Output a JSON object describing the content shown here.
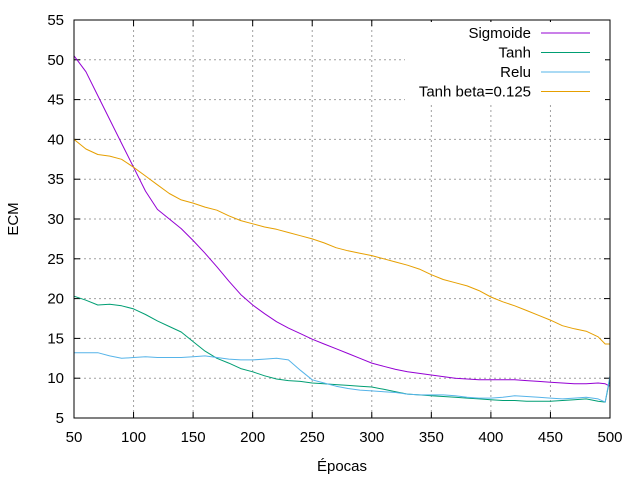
{
  "chart_data": {
    "type": "line",
    "title": "",
    "xlabel": "Épocas",
    "ylabel": "ECM",
    "xlim": [
      50,
      500
    ],
    "ylim": [
      5,
      55
    ],
    "x_ticks": [
      50,
      100,
      150,
      200,
      250,
      300,
      350,
      400,
      450,
      500
    ],
    "y_ticks": [
      5,
      10,
      15,
      20,
      25,
      30,
      35,
      40,
      45,
      50,
      55
    ],
    "grid": true,
    "legend_position": "top-right",
    "series": [
      {
        "name": "Sigmoide",
        "color": "#9400d3",
        "points": [
          [
            50,
            50.5
          ],
          [
            60,
            48.5
          ],
          [
            70,
            45.5
          ],
          [
            80,
            42.5
          ],
          [
            90,
            39.5
          ],
          [
            100,
            36.5
          ],
          [
            110,
            33.5
          ],
          [
            120,
            31.2
          ],
          [
            130,
            30.0
          ],
          [
            140,
            28.8
          ],
          [
            150,
            27.3
          ],
          [
            160,
            25.7
          ],
          [
            170,
            24.0
          ],
          [
            180,
            22.2
          ],
          [
            190,
            20.5
          ],
          [
            200,
            19.2
          ],
          [
            210,
            18.1
          ],
          [
            220,
            17.1
          ],
          [
            230,
            16.3
          ],
          [
            240,
            15.6
          ],
          [
            250,
            14.9
          ],
          [
            260,
            14.3
          ],
          [
            270,
            13.7
          ],
          [
            280,
            13.1
          ],
          [
            290,
            12.5
          ],
          [
            300,
            11.9
          ],
          [
            310,
            11.5
          ],
          [
            320,
            11.1
          ],
          [
            330,
            10.8
          ],
          [
            340,
            10.6
          ],
          [
            350,
            10.4
          ],
          [
            360,
            10.2
          ],
          [
            370,
            10.0
          ],
          [
            380,
            9.9
          ],
          [
            390,
            9.8
          ],
          [
            400,
            9.8
          ],
          [
            410,
            9.8
          ],
          [
            420,
            9.8
          ],
          [
            430,
            9.7
          ],
          [
            440,
            9.6
          ],
          [
            450,
            9.5
          ],
          [
            460,
            9.4
          ],
          [
            470,
            9.3
          ],
          [
            480,
            9.3
          ],
          [
            490,
            9.4
          ],
          [
            496,
            9.3
          ],
          [
            500,
            9.0
          ]
        ]
      },
      {
        "name": "Tanh",
        "color": "#009e73",
        "points": [
          [
            50,
            20.3
          ],
          [
            60,
            19.8
          ],
          [
            70,
            19.2
          ],
          [
            80,
            19.3
          ],
          [
            90,
            19.1
          ],
          [
            100,
            18.7
          ],
          [
            110,
            18.0
          ],
          [
            120,
            17.2
          ],
          [
            130,
            16.5
          ],
          [
            140,
            15.8
          ],
          [
            150,
            14.6
          ],
          [
            160,
            13.4
          ],
          [
            170,
            12.5
          ],
          [
            180,
            11.9
          ],
          [
            190,
            11.2
          ],
          [
            200,
            10.8
          ],
          [
            210,
            10.3
          ],
          [
            220,
            9.9
          ],
          [
            230,
            9.7
          ],
          [
            240,
            9.6
          ],
          [
            250,
            9.4
          ],
          [
            260,
            9.3
          ],
          [
            270,
            9.2
          ],
          [
            280,
            9.1
          ],
          [
            290,
            9.0
          ],
          [
            300,
            8.9
          ],
          [
            310,
            8.6
          ],
          [
            320,
            8.3
          ],
          [
            330,
            8.0
          ],
          [
            340,
            7.9
          ],
          [
            350,
            7.8
          ],
          [
            360,
            7.7
          ],
          [
            370,
            7.6
          ],
          [
            380,
            7.5
          ],
          [
            390,
            7.4
          ],
          [
            400,
            7.3
          ],
          [
            410,
            7.2
          ],
          [
            420,
            7.2
          ],
          [
            430,
            7.1
          ],
          [
            440,
            7.1
          ],
          [
            450,
            7.1
          ],
          [
            460,
            7.2
          ],
          [
            470,
            7.3
          ],
          [
            480,
            7.4
          ],
          [
            490,
            7.1
          ],
          [
            496,
            7.0
          ],
          [
            500,
            10.0
          ]
        ]
      },
      {
        "name": "Relu",
        "color": "#56b4e9",
        "points": [
          [
            50,
            13.2
          ],
          [
            60,
            13.2
          ],
          [
            70,
            13.2
          ],
          [
            80,
            12.8
          ],
          [
            90,
            12.5
          ],
          [
            100,
            12.6
          ],
          [
            110,
            12.7
          ],
          [
            120,
            12.6
          ],
          [
            130,
            12.6
          ],
          [
            140,
            12.6
          ],
          [
            150,
            12.7
          ],
          [
            160,
            12.8
          ],
          [
            170,
            12.6
          ],
          [
            180,
            12.4
          ],
          [
            190,
            12.3
          ],
          [
            200,
            12.3
          ],
          [
            210,
            12.4
          ],
          [
            220,
            12.5
          ],
          [
            230,
            12.3
          ],
          [
            240,
            11.0
          ],
          [
            250,
            9.8
          ],
          [
            260,
            9.4
          ],
          [
            270,
            9.0
          ],
          [
            280,
            8.7
          ],
          [
            290,
            8.5
          ],
          [
            300,
            8.4
          ],
          [
            310,
            8.3
          ],
          [
            320,
            8.2
          ],
          [
            330,
            8.0
          ],
          [
            340,
            7.9
          ],
          [
            350,
            7.9
          ],
          [
            360,
            7.9
          ],
          [
            370,
            7.8
          ],
          [
            380,
            7.6
          ],
          [
            390,
            7.5
          ],
          [
            400,
            7.5
          ],
          [
            410,
            7.6
          ],
          [
            420,
            7.8
          ],
          [
            430,
            7.7
          ],
          [
            440,
            7.6
          ],
          [
            450,
            7.5
          ],
          [
            460,
            7.4
          ],
          [
            470,
            7.5
          ],
          [
            480,
            7.6
          ],
          [
            490,
            7.4
          ],
          [
            496,
            7.0
          ],
          [
            500,
            10.3
          ]
        ]
      },
      {
        "name": "Tanh beta=0.125",
        "color": "#e69f00",
        "points": [
          [
            50,
            40.0
          ],
          [
            60,
            38.8
          ],
          [
            70,
            38.1
          ],
          [
            80,
            37.9
          ],
          [
            90,
            37.5
          ],
          [
            100,
            36.5
          ],
          [
            110,
            35.4
          ],
          [
            120,
            34.3
          ],
          [
            130,
            33.2
          ],
          [
            140,
            32.4
          ],
          [
            150,
            32.0
          ],
          [
            160,
            31.5
          ],
          [
            170,
            31.1
          ],
          [
            180,
            30.4
          ],
          [
            190,
            29.8
          ],
          [
            200,
            29.4
          ],
          [
            210,
            29.0
          ],
          [
            220,
            28.7
          ],
          [
            230,
            28.3
          ],
          [
            240,
            27.9
          ],
          [
            250,
            27.5
          ],
          [
            260,
            27.0
          ],
          [
            270,
            26.4
          ],
          [
            280,
            26.0
          ],
          [
            290,
            25.7
          ],
          [
            300,
            25.4
          ],
          [
            310,
            25.0
          ],
          [
            320,
            24.6
          ],
          [
            330,
            24.2
          ],
          [
            340,
            23.7
          ],
          [
            350,
            23.0
          ],
          [
            360,
            22.4
          ],
          [
            370,
            22.0
          ],
          [
            380,
            21.6
          ],
          [
            390,
            21.0
          ],
          [
            400,
            20.2
          ],
          [
            410,
            19.6
          ],
          [
            420,
            19.1
          ],
          [
            430,
            18.5
          ],
          [
            440,
            17.9
          ],
          [
            450,
            17.3
          ],
          [
            460,
            16.6
          ],
          [
            470,
            16.2
          ],
          [
            480,
            15.9
          ],
          [
            490,
            15.2
          ],
          [
            496,
            14.3
          ],
          [
            500,
            14.3
          ]
        ]
      }
    ]
  }
}
